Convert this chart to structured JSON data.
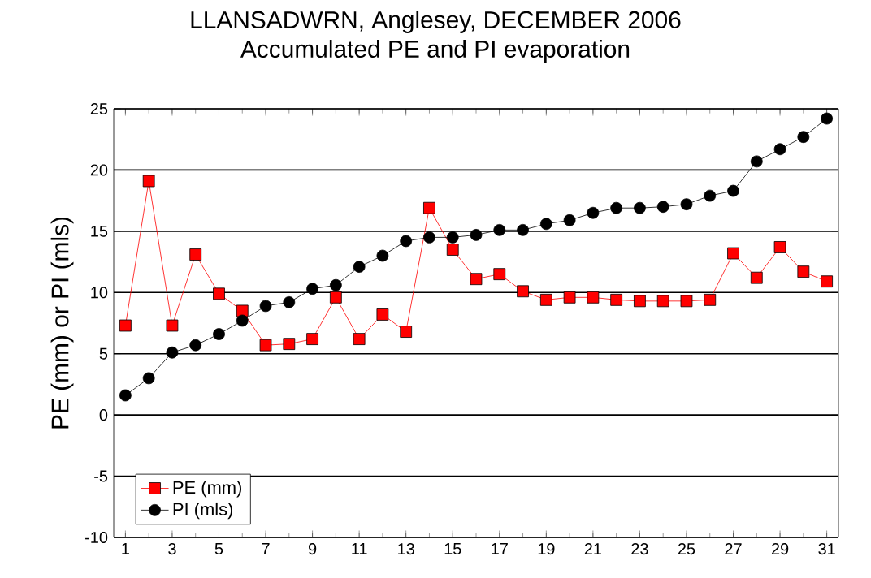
{
  "chart_data": {
    "type": "line",
    "title": "LLANSADWRN, Anglesey, DECEMBER 2006",
    "subtitle": "Accumulated PE and PI evaporation",
    "ylabel": "PE (mm) or PI (mls)",
    "x": [
      1,
      2,
      3,
      4,
      5,
      6,
      7,
      8,
      9,
      10,
      11,
      12,
      13,
      14,
      15,
      16,
      17,
      18,
      19,
      20,
      21,
      22,
      23,
      24,
      25,
      26,
      27,
      28,
      29,
      30,
      31
    ],
    "xlim": [
      0.5,
      31.5
    ],
    "xticks": [
      1,
      3,
      5,
      7,
      9,
      11,
      13,
      15,
      17,
      19,
      21,
      23,
      25,
      27,
      29,
      31
    ],
    "ylim": [
      -10,
      25
    ],
    "yticks": [
      -10,
      -5,
      0,
      5,
      10,
      15,
      20,
      25
    ],
    "grid": "y",
    "legend": "bottom left",
    "series": [
      {
        "name": "PE (mm)",
        "color": "#ff0000",
        "marker": "square",
        "values": [
          7.3,
          19.1,
          7.3,
          13.1,
          9.9,
          8.5,
          5.7,
          5.8,
          6.2,
          9.6,
          6.2,
          8.2,
          6.8,
          16.9,
          13.5,
          11.1,
          11.5,
          10.1,
          9.4,
          9.6,
          9.6,
          9.4,
          9.3,
          9.3,
          9.3,
          9.4,
          13.2,
          11.2,
          13.7,
          11.7,
          10.9
        ]
      },
      {
        "name": "PI (mls)",
        "color": "#000000",
        "marker": "circle",
        "values": [
          1.6,
          3.0,
          5.1,
          5.7,
          6.6,
          7.7,
          8.9,
          9.2,
          10.3,
          10.6,
          12.1,
          13.0,
          14.2,
          14.5,
          14.5,
          14.7,
          15.1,
          15.1,
          15.6,
          15.9,
          16.5,
          16.9,
          16.9,
          17.0,
          17.2,
          17.9,
          18.3,
          20.7,
          21.7,
          22.7,
          24.2
        ]
      }
    ]
  }
}
